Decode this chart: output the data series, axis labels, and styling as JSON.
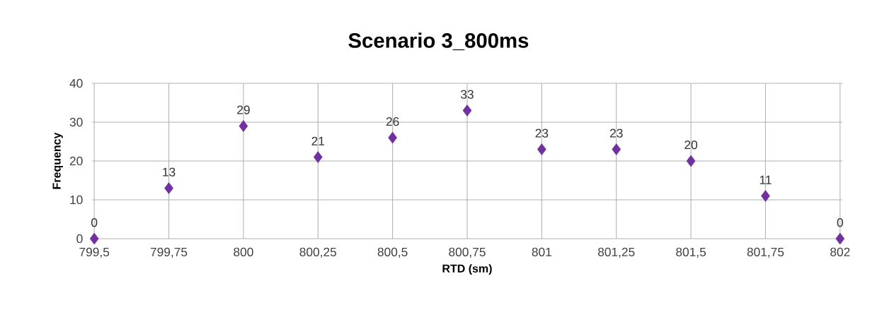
{
  "chart_data": {
    "type": "scatter",
    "title": "Scenario 3_800ms",
    "xlabel": "RTD (sm)",
    "ylabel": "Frequency",
    "categories": [
      "799,5",
      "799,75",
      "800",
      "800,25",
      "800,5",
      "800,75",
      "801",
      "801,25",
      "801,5",
      "801,75",
      "802"
    ],
    "values": [
      0,
      13,
      29,
      21,
      26,
      33,
      23,
      23,
      20,
      11,
      0
    ],
    "color": "#7030a0",
    "marker": "diamond",
    "data_labels": true,
    "grid": true,
    "ylim": [
      0,
      40
    ],
    "yticks": [
      0,
      10,
      20,
      30,
      40
    ]
  }
}
